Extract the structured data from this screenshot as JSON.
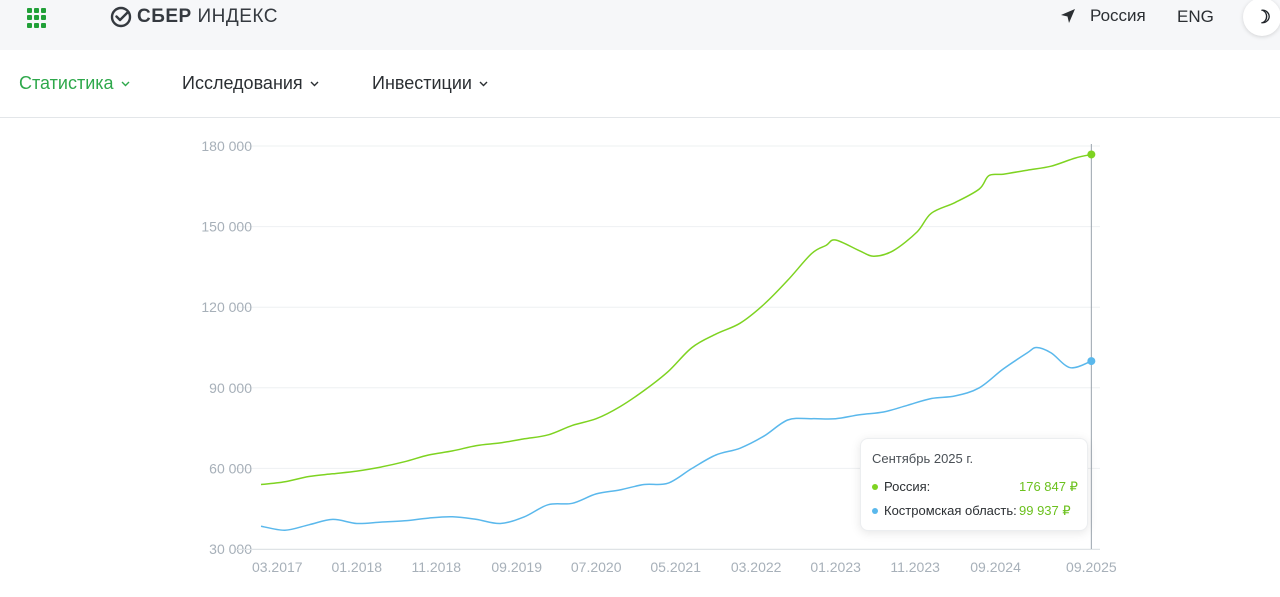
{
  "header": {
    "logo_text_bold": "СБЕР",
    "logo_text_rest": "ИНДЕКС",
    "region_label": "Россия",
    "lang_label": "ENG",
    "theme_icon": "moon-icon",
    "apps_icon": "grid-apps-icon",
    "region_icon": "location-arrow-icon"
  },
  "nav": {
    "items": [
      {
        "label": "Статистика",
        "active": true
      },
      {
        "label": "Исследования",
        "active": false
      },
      {
        "label": "Инвестиции",
        "active": false
      }
    ]
  },
  "colors": {
    "accent": "#2ea84b",
    "russia": "#7ed321",
    "region": "#5ab8ec"
  },
  "tooltip": {
    "title": "Сентябрь 2025 г.",
    "rows": [
      {
        "name": "Россия:",
        "value": "176 847 ₽"
      },
      {
        "name": "Костромская область:",
        "value": "99 937 ₽"
      }
    ]
  },
  "chart_data": {
    "type": "line",
    "ylim": [
      30000,
      180000
    ],
    "yticks": [
      30000,
      60000,
      90000,
      120000,
      150000,
      180000
    ],
    "ytick_labels": [
      "30 000",
      "60 000",
      "90 000",
      "120 000",
      "150 000",
      "180 000"
    ],
    "xlim": [
      2017.0,
      2025.75
    ],
    "xticks": [
      2017.17,
      2018.0,
      2018.83,
      2019.67,
      2020.5,
      2021.33,
      2022.17,
      2023.0,
      2023.83,
      2024.67,
      2025.67
    ],
    "xtick_labels": [
      "03.2017",
      "01.2018",
      "11.2018",
      "09.2019",
      "07.2020",
      "05.2021",
      "03.2022",
      "01.2023",
      "11.2023",
      "09.2024",
      "09.2025"
    ],
    "series": [
      {
        "name": "Россия",
        "x": [
          2017.0,
          2017.25,
          2017.5,
          2017.75,
          2018.0,
          2018.25,
          2018.5,
          2018.75,
          2019.0,
          2019.25,
          2019.5,
          2019.75,
          2020.0,
          2020.25,
          2020.5,
          2020.75,
          2021.0,
          2021.25,
          2021.5,
          2021.75,
          2022.0,
          2022.25,
          2022.5,
          2022.75,
          2022.9,
          2023.0,
          2023.25,
          2023.4,
          2023.6,
          2023.85,
          2024.0,
          2024.25,
          2024.5,
          2024.6,
          2024.75,
          2025.0,
          2025.25,
          2025.5,
          2025.67
        ],
        "y": [
          54000,
          55000,
          57000,
          58000,
          59000,
          60500,
          62500,
          65000,
          66500,
          68500,
          69500,
          71000,
          72500,
          76000,
          78500,
          83000,
          89000,
          96000,
          105000,
          110000,
          114000,
          121000,
          130000,
          140000,
          143000,
          145000,
          141000,
          139000,
          141000,
          148000,
          155000,
          159000,
          164000,
          169000,
          169500,
          171000,
          172500,
          175500,
          176847
        ]
      },
      {
        "name": "Костромская область",
        "x": [
          2017.0,
          2017.25,
          2017.5,
          2017.75,
          2018.0,
          2018.25,
          2018.5,
          2018.75,
          2019.0,
          2019.25,
          2019.5,
          2019.75,
          2020.0,
          2020.25,
          2020.5,
          2020.75,
          2021.0,
          2021.25,
          2021.5,
          2021.75,
          2022.0,
          2022.25,
          2022.5,
          2022.75,
          2023.0,
          2023.25,
          2023.5,
          2023.75,
          2024.0,
          2024.25,
          2024.5,
          2024.75,
          2025.0,
          2025.1,
          2025.25,
          2025.45,
          2025.67
        ],
        "y": [
          38500,
          37000,
          39000,
          41000,
          39500,
          40000,
          40500,
          41500,
          42000,
          41000,
          39500,
          42000,
          46500,
          47000,
          50500,
          52000,
          54000,
          54500,
          60000,
          65000,
          67500,
          72000,
          78000,
          78500,
          78500,
          80000,
          81000,
          83500,
          86000,
          87000,
          90000,
          97000,
          103000,
          105000,
          103000,
          97500,
          99937
        ]
      }
    ]
  }
}
